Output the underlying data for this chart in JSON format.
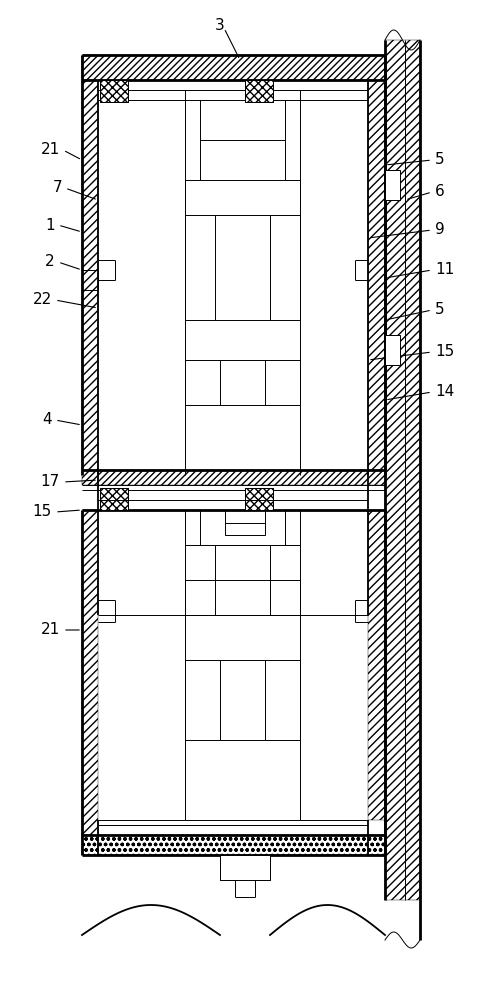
{
  "bg_color": "#ffffff",
  "fig_width": 4.95,
  "fig_height": 10.0,
  "dpi": 100,
  "lw_thick": 2.0,
  "lw_med": 1.3,
  "lw_thin": 0.7,
  "lw_hair": 0.5
}
